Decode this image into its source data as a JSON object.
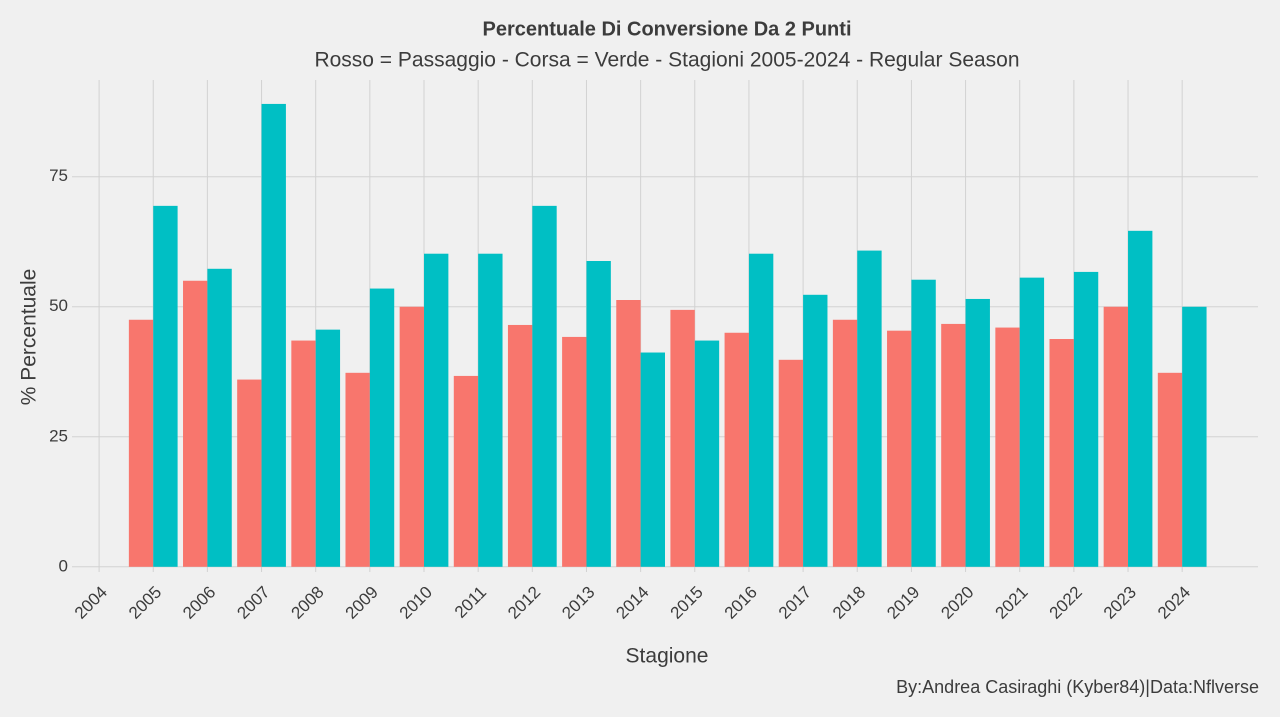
{
  "chart_data": {
    "type": "bar",
    "title": "Percentuale Di Conversione Da 2 Punti",
    "subtitle": "Rosso = Passaggio - Corsa = Verde - Stagioni 2005-2024 - Regular Season",
    "xlabel": "Stagione",
    "ylabel": "% Percentuale",
    "caption": "By:Andrea Casiraghi (Kyber84)|Data:Nflverse",
    "x": [
      2005,
      2006,
      2007,
      2008,
      2009,
      2010,
      2011,
      2012,
      2013,
      2014,
      2015,
      2016,
      2017,
      2018,
      2019,
      2020,
      2021,
      2022,
      2023,
      2024
    ],
    "series": [
      {
        "color": "#f8766d",
        "values": [
          47.5,
          55.0,
          36.0,
          43.5,
          37.3,
          50.0,
          36.7,
          46.5,
          44.2,
          51.3,
          49.4,
          45.0,
          39.8,
          47.5,
          45.4,
          46.7,
          46.0,
          43.8,
          50.0,
          37.3
        ]
      },
      {
        "color": "#00bfc4",
        "values": [
          69.4,
          57.3,
          89.0,
          45.6,
          53.5,
          60.2,
          60.2,
          69.4,
          58.8,
          41.2,
          43.5,
          60.2,
          52.3,
          60.8,
          55.2,
          51.5,
          55.6,
          56.7,
          64.6,
          50.0
        ]
      }
    ],
    "xlim": [
      2003.5,
      2025.4
    ],
    "xticks": [
      2004,
      2005,
      2006,
      2007,
      2008,
      2009,
      2010,
      2011,
      2012,
      2013,
      2014,
      2015,
      2016,
      2017,
      2018,
      2019,
      2020,
      2021,
      2022,
      2023,
      2024
    ],
    "ylim": [
      -1,
      93.6
    ],
    "yticks": [
      0,
      25,
      50,
      75
    ],
    "grid": true
  }
}
